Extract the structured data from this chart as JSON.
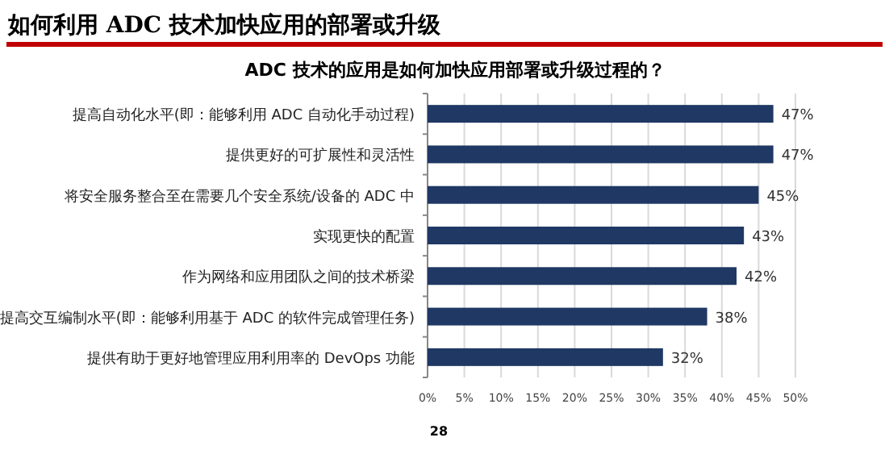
{
  "chart_data": {
    "type": "bar",
    "orientation": "horizontal",
    "title": "如何利用 ADC 技术加快应用的部署或升级",
    "subtitle": "ADC 技术的应用是如何加快应用部署或升级过程的？",
    "categories": [
      "提高自动化水平(即：能够利用 ADC 自动化手动过程)",
      "提供更好的可扩展性和灵活性",
      "将安全服务整合至在需要几个安全系统/设备的 ADC 中",
      "实现更快的配置",
      "作为网络和应用团队之间的技术桥梁",
      "提高交互编制水平(即：能够利用基于 ADC 的软件完成管理任务)",
      "提供有助于更好地管理应用利用率的 DevOps 功能"
    ],
    "values": [
      47,
      47,
      45,
      43,
      42,
      38,
      32
    ],
    "value_labels": [
      "47%",
      "47%",
      "45%",
      "43%",
      "42%",
      "38%",
      "32%"
    ],
    "color": "#1f3864",
    "xlim": [
      0,
      50
    ],
    "xticks": [
      {
        "value": 0,
        "label": "0%"
      },
      {
        "value": 5,
        "label": "5%"
      },
      {
        "value": 10,
        "label": "10%"
      },
      {
        "value": 15,
        "label": "15%"
      },
      {
        "value": 20,
        "label": "20%"
      },
      {
        "value": 25,
        "label": "25%"
      },
      {
        "value": 30,
        "label": "30%"
      },
      {
        "value": 35,
        "label": "35%"
      },
      {
        "value": 40,
        "label": "40%"
      },
      {
        "value": 45,
        "label": "45%"
      },
      {
        "value": 50,
        "label": "50%"
      }
    ],
    "grid": "x",
    "annotations": [
      "28"
    ]
  }
}
